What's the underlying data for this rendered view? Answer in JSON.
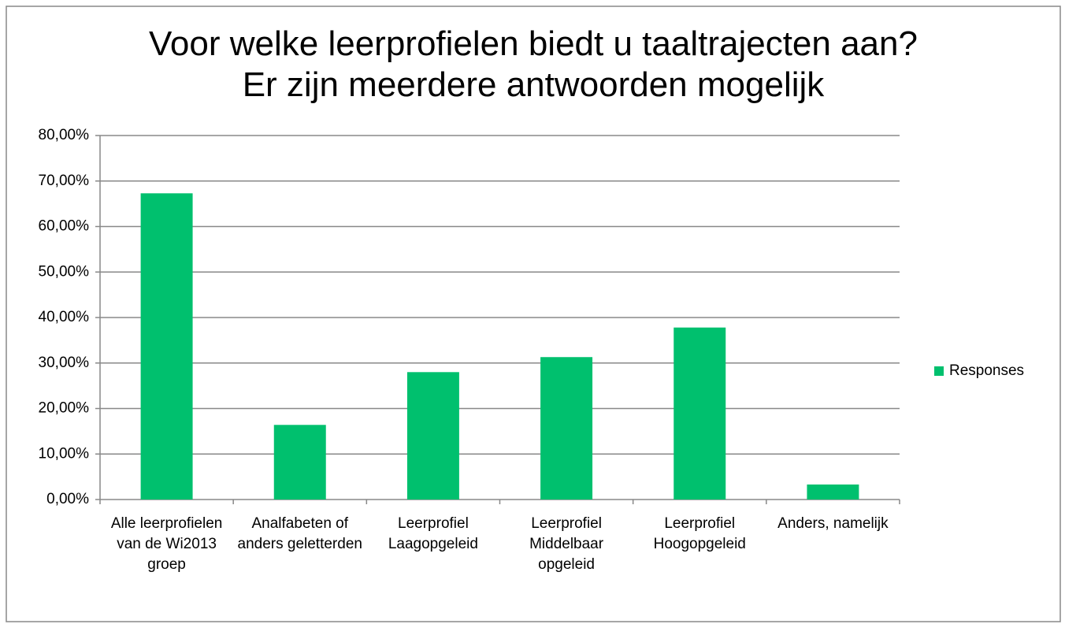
{
  "chart_data": {
    "type": "bar",
    "title": "Voor welke leerprofielen biedt u taaltrajecten aan? Er zijn meerdere antwoorden mogelijk",
    "categories": [
      "Alle leerprofielen van de Wi2013 groep",
      "Analfabeten of anders geletterden",
      "Leerprofiel Laagopgeleid",
      "Leerprofiel Middelbaar opgeleid",
      "Leerprofiel Hoogopgeleid",
      "Anders, namelijk"
    ],
    "series": [
      {
        "name": "Responses",
        "color": "#00c06e",
        "values": [
          67.3,
          16.4,
          28.0,
          31.3,
          37.8,
          3.3
        ]
      }
    ],
    "ylim": [
      0,
      80
    ],
    "yticks": [
      {
        "value": 0,
        "label": "0,00%"
      },
      {
        "value": 10,
        "label": "10,00%"
      },
      {
        "value": 20,
        "label": "20,00%"
      },
      {
        "value": 30,
        "label": "30,00%"
      },
      {
        "value": 40,
        "label": "40,00%"
      },
      {
        "value": 50,
        "label": "50,00%"
      },
      {
        "value": 60,
        "label": "60,00%"
      },
      {
        "value": 70,
        "label": "70,00%"
      },
      {
        "value": 80,
        "label": "80,00%"
      }
    ],
    "grid": true,
    "legend": "right"
  }
}
